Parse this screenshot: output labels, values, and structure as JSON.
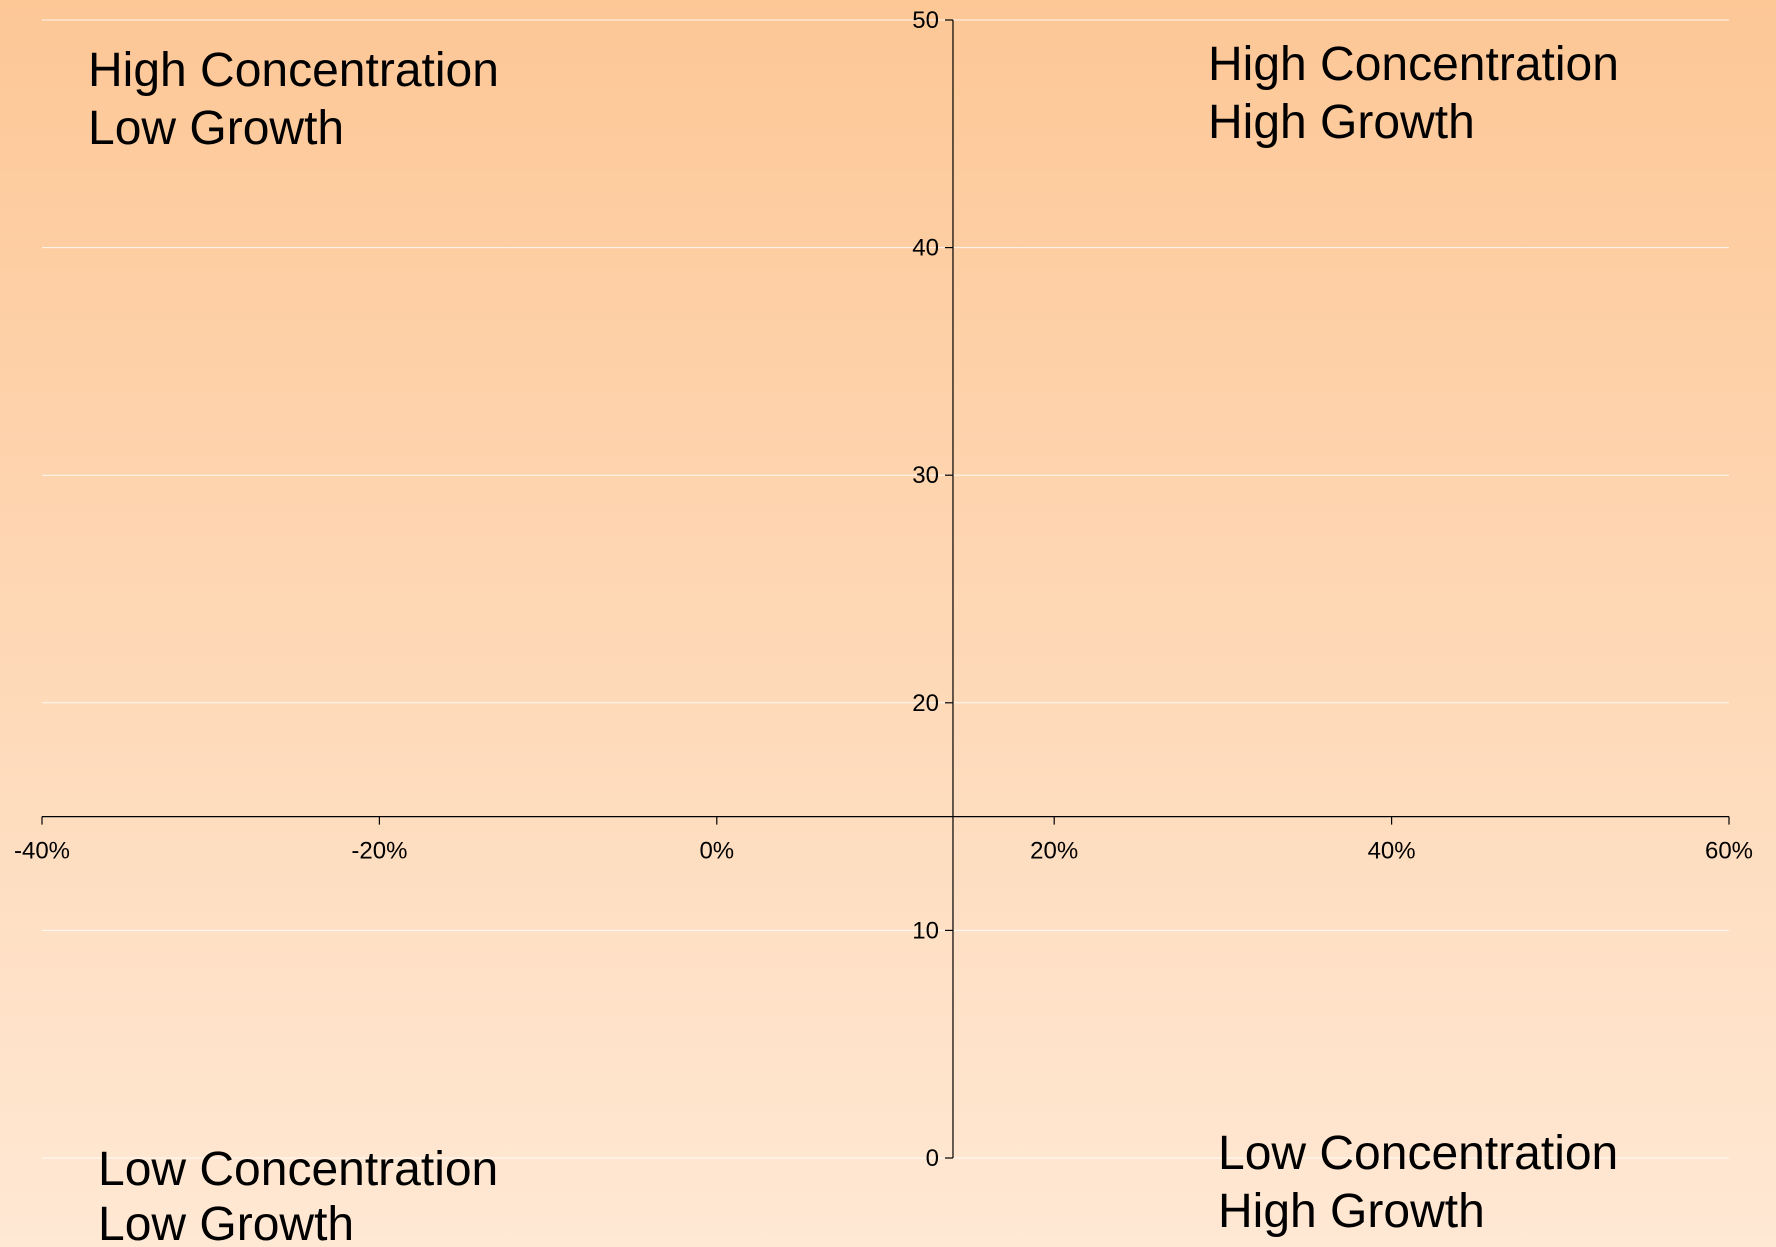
{
  "chart_data": {
    "type": "scatter",
    "title": "",
    "xlabel": "",
    "ylabel": "",
    "xlim": [
      -0.4,
      0.6
    ],
    "ylim": [
      0,
      50
    ],
    "x_ticks": [
      -0.4,
      -0.2,
      0,
      0.2,
      0.4,
      0.6
    ],
    "x_tick_labels": [
      "-40%",
      "-20%",
      "0%",
      "20%",
      "40%",
      "60%"
    ],
    "y_ticks": [
      0,
      10,
      20,
      30,
      40,
      50
    ],
    "y_tick_labels": [
      "0",
      "10",
      "20",
      "30",
      "40",
      "50"
    ],
    "x_axis_crosses_y_at": 15,
    "y_axis_crosses_x_at": 0.14,
    "grid": "horizontal",
    "series": [],
    "quadrants": [
      {
        "id": "top-left",
        "line1": "High Concentration",
        "line2": "Low Growth"
      },
      {
        "id": "top-right",
        "line1": "High Concentration",
        "line2": "High Growth"
      },
      {
        "id": "bottom-left",
        "line1": "Low Concentration",
        "line2": "Low Growth"
      },
      {
        "id": "bottom-right",
        "line1": "Low Concentration",
        "line2": "High Growth"
      }
    ],
    "colors": {
      "background_top": "#fdc796",
      "background_bottom": "#ffe8d4",
      "gridline": "#ffffff",
      "axis": "#000000",
      "text": "#000000"
    }
  }
}
